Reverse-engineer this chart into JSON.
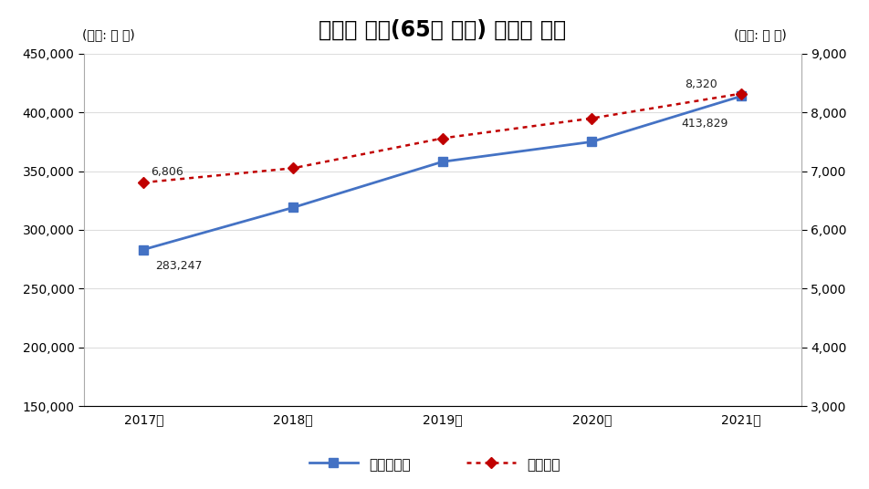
{
  "title": "연도별 노인(65세 이상) 진료비 현황",
  "ylabel_left": "(단위: 억 원)",
  "ylabel_right": "(단위: 천 명)",
  "years": [
    "2017년",
    "2018년",
    "2019년",
    "2020년",
    "2021년"
  ],
  "x": [
    0,
    1,
    2,
    3,
    4
  ],
  "medical_cost": [
    283247,
    319000,
    358000,
    375000,
    413829
  ],
  "population": [
    6806,
    7050,
    7560,
    7900,
    8320
  ],
  "ylim_left": [
    150000,
    450000
  ],
  "ylim_right": [
    3000,
    9000
  ],
  "yticks_left": [
    150000,
    200000,
    250000,
    300000,
    350000,
    400000,
    450000
  ],
  "yticks_right": [
    3000,
    4000,
    5000,
    6000,
    7000,
    8000,
    9000
  ],
  "line1_color": "#4472C4",
  "line2_color": "#C00000",
  "marker1": "s",
  "marker2": "D",
  "line1_label": "노인진료비",
  "line2_label": "노인인구",
  "bg_color": "#FFFFFF",
  "title_fontsize": 17,
  "label_fontsize": 10,
  "tick_fontsize": 10,
  "annot1_text": "283,247",
  "annot2_text": "413,829",
  "annot3_text": "6,806",
  "annot4_text": "8,320"
}
